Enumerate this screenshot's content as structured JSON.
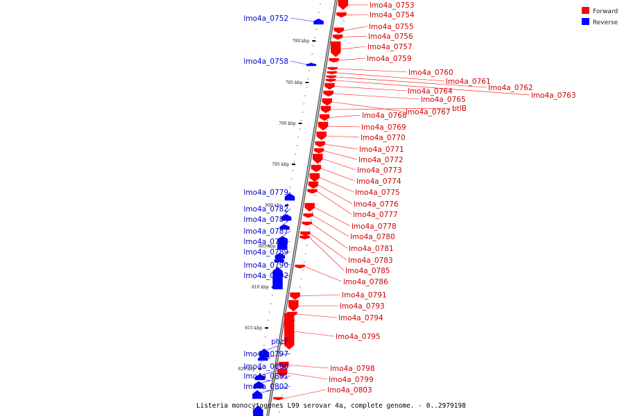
{
  "legend": {
    "forward_label": "Forward",
    "reverse_label": "Reverse",
    "forward_color": "#ff0000",
    "reverse_color": "#0000ff"
  },
  "caption": "Listeria monocytogenes L99 serovar 4a, complete genome. - 0..2979198",
  "ticks": [
    "780 kbp",
    "785 kbp",
    "790 kbp",
    "795 kbp",
    "800 kbp",
    "805 kbp",
    "810 kbp",
    "815 kbp",
    "820 kbp"
  ],
  "reverse_genes": [
    "lmo4a_0752",
    "lmo4a_0758",
    "lmo4a_0779",
    "lmo4a_0782",
    "lmo4a_0784",
    "lmo4a_0787",
    "lmo4a_0788",
    "lmo4a_0789",
    "lmo4a_0790",
    "lmo4a_0792",
    "phzF",
    "lmo4a_0797",
    "lmo4a_0800",
    "lmo4a_0801",
    "lmo4a_0802"
  ],
  "forward_genes": [
    "lmo4a_0753",
    "lmo4a_0754",
    "lmo4a_0755",
    "lmo4a_0756",
    "lmo4a_0757",
    "lmo4a_0759",
    "lmo4a_0760",
    "lmo4a_0761",
    "lmo4a_0762",
    "lmo4a_0763",
    "lmo4a_0764",
    "lmo4a_0765",
    "lmo4a_0767",
    "btlB",
    "lmo4a_0768",
    "lmo4a_0769",
    "lmo4a_0770",
    "lmo4a_0771",
    "lmo4a_0772",
    "lmo4a_0773",
    "lmo4a_0774",
    "lmo4a_0775",
    "lmo4a_0776",
    "lmo4a_0777",
    "lmo4a_0778",
    "lmo4a_0780",
    "lmo4a_0781",
    "lmo4a_0783",
    "lmo4a_0785",
    "lmo4a_0786",
    "lmo4a_0791",
    "lmo4a_0793",
    "lmo4a_0794",
    "lmo4a_0795",
    "lmo4a_0798",
    "lmo4a_0799",
    "lmo4a_0803"
  ]
}
